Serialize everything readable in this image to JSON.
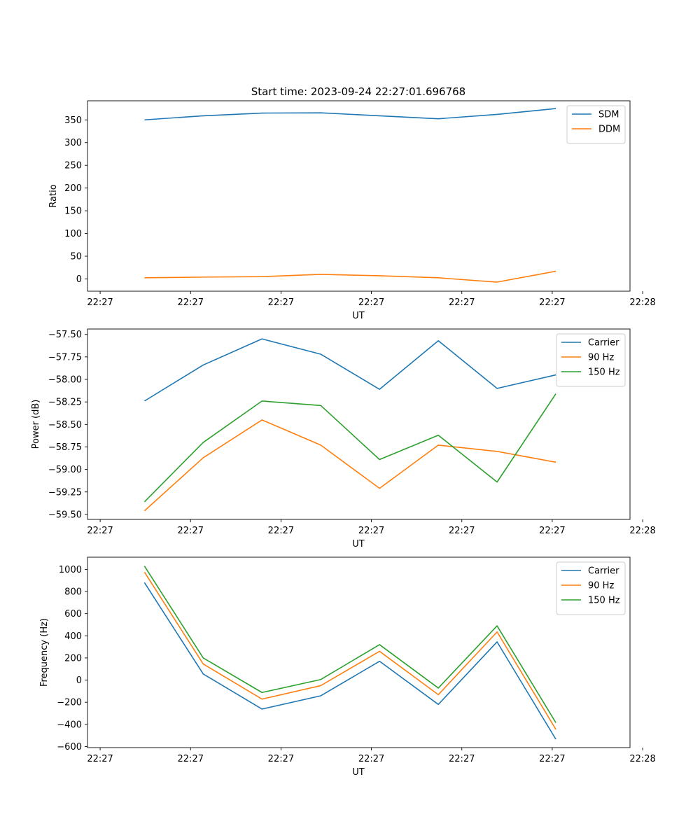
{
  "figure_title": "Start time: 2023-09-24 22:27:01.696768",
  "colors": {
    "blue": "#1f77b4",
    "orange": "#ff7f0e",
    "green": "#2ca02c"
  },
  "chart_data": [
    {
      "type": "line",
      "title": "Start time: 2023-09-24 22:27:01.696768",
      "xlabel": "UT",
      "ylabel": "Ratio",
      "x_tick_labels": [
        "22:27",
        "22:27",
        "22:27",
        "22:27",
        "22:27",
        "22:27",
        "22:28"
      ],
      "x_ticks": [
        0,
        1,
        2,
        3,
        4,
        5,
        6
      ],
      "xlim": [
        -0.14,
        5.86
      ],
      "x": [
        0.49,
        1.14,
        1.79,
        2.44,
        3.09,
        3.74,
        4.39,
        5.04
      ],
      "yticks": [
        0,
        50,
        100,
        150,
        200,
        250,
        300,
        350
      ],
      "ylim": [
        -27,
        392
      ],
      "legend": "top-right",
      "series": [
        {
          "name": "SDM",
          "color": "#1f77b4",
          "values": [
            350,
            359,
            365,
            365.5,
            359,
            352.5,
            362,
            375
          ]
        },
        {
          "name": "DDM",
          "color": "#ff7f0e",
          "values": [
            2.5,
            4,
            5,
            10,
            7,
            2.5,
            -7,
            17
          ]
        }
      ]
    },
    {
      "type": "line",
      "xlabel": "UT",
      "ylabel": "Power (dB)",
      "x_tick_labels": [
        "22:27",
        "22:27",
        "22:27",
        "22:27",
        "22:27",
        "22:27",
        "22:28"
      ],
      "x_ticks": [
        0,
        1,
        2,
        3,
        4,
        5,
        6
      ],
      "xlim": [
        -0.14,
        5.86
      ],
      "x": [
        0.49,
        1.14,
        1.79,
        2.44,
        3.09,
        3.74,
        4.39,
        5.04
      ],
      "yticks": [
        -59.5,
        -59.25,
        -59.0,
        -58.75,
        -58.5,
        -58.25,
        -58.0,
        -57.75,
        -57.5
      ],
      "ytick_labels": [
        "−59.50",
        "−59.25",
        "−59.00",
        "−58.75",
        "−58.50",
        "−58.25",
        "−58.00",
        "−57.75",
        "−57.50"
      ],
      "ylim": [
        -59.555,
        -57.44
      ],
      "legend": "top-right",
      "series": [
        {
          "name": "Carrier",
          "color": "#1f77b4",
          "values": [
            -58.24,
            -57.84,
            -57.55,
            -57.72,
            -58.11,
            -57.57,
            -58.1,
            -57.95
          ]
        },
        {
          "name": "90 Hz",
          "color": "#ff7f0e",
          "values": [
            -59.46,
            -58.87,
            -58.45,
            -58.73,
            -59.21,
            -58.73,
            -58.8,
            -58.92
          ]
        },
        {
          "name": "150 Hz",
          "color": "#2ca02c",
          "values": [
            -59.36,
            -58.7,
            -58.24,
            -58.29,
            -58.89,
            -58.62,
            -59.14,
            -58.16
          ]
        }
      ]
    },
    {
      "type": "line",
      "xlabel": "UT",
      "ylabel": "Frequency (Hz)",
      "x_tick_labels": [
        "22:27",
        "22:27",
        "22:27",
        "22:27",
        "22:27",
        "22:27",
        "22:28"
      ],
      "x_ticks": [
        0,
        1,
        2,
        3,
        4,
        5,
        6
      ],
      "xlim": [
        -0.14,
        5.86
      ],
      "x": [
        0.49,
        1.14,
        1.79,
        2.44,
        3.09,
        3.74,
        4.39,
        5.04
      ],
      "yticks": [
        -600,
        -400,
        -200,
        0,
        200,
        400,
        600,
        800,
        1000
      ],
      "ytick_labels": [
        "−600",
        "−400",
        "−200",
        "0",
        "200",
        "400",
        "600",
        "800",
        "1000"
      ],
      "ylim": [
        -610,
        1110
      ],
      "legend": "top-right",
      "series": [
        {
          "name": "Carrier",
          "color": "#1f77b4",
          "values": [
            880,
            55,
            -262,
            -142,
            170,
            -220,
            345,
            -535
          ]
        },
        {
          "name": "90 Hz",
          "color": "#ff7f0e",
          "values": [
            975,
            145,
            -172,
            -50,
            260,
            -132,
            435,
            -445
          ]
        },
        {
          "name": "150 Hz",
          "color": "#2ca02c",
          "values": [
            1030,
            200,
            -112,
            5,
            320,
            -72,
            490,
            -385
          ]
        }
      ]
    }
  ]
}
